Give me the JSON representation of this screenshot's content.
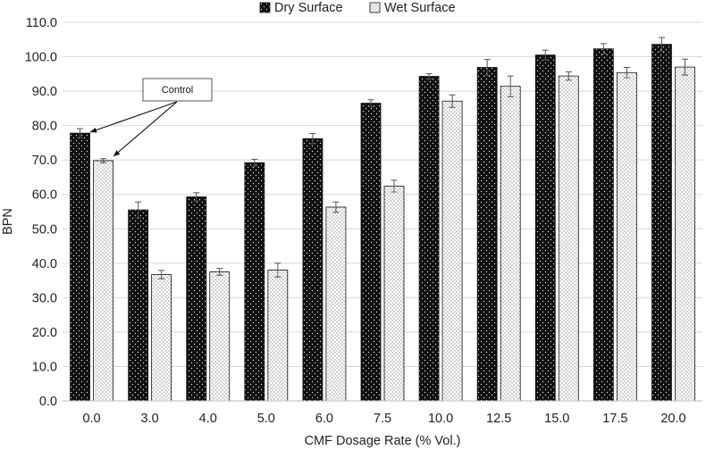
{
  "chart_data": {
    "type": "bar",
    "title": "",
    "xlabel": "CMF Dosage Rate (% Vol.)",
    "ylabel": "BPN",
    "ylim": [
      0,
      110
    ],
    "ytick_step": 10,
    "ytick_labels": [
      "0.0",
      "10.0",
      "20.0",
      "30.0",
      "40.0",
      "50.0",
      "60.0",
      "70.0",
      "80.0",
      "90.0",
      "100.0",
      "110.0"
    ],
    "grid": true,
    "legend_position": "top-center",
    "categories": [
      "0.0",
      "3.0",
      "4.0",
      "5.0",
      "6.0",
      "7.5",
      "10.0",
      "12.5",
      "15.0",
      "17.5",
      "20.0"
    ],
    "series": [
      {
        "name": "Dry Surface",
        "color": "#111111",
        "pattern": "white-dots-on-black",
        "values": [
          77.8,
          55.5,
          59.3,
          69.2,
          76.2,
          86.5,
          94.3,
          96.9,
          100.5,
          102.3,
          103.6
        ],
        "errors": [
          1.3,
          2.3,
          1.2,
          1.0,
          1.5,
          1.0,
          0.8,
          2.3,
          1.4,
          1.5,
          2.0
        ]
      },
      {
        "name": "Wet Surface",
        "color": "#ffffff",
        "pattern": "black-dots-on-white",
        "values": [
          69.8,
          36.7,
          37.5,
          38.0,
          56.3,
          62.4,
          87.1,
          91.4,
          94.4,
          95.4,
          97.0
        ],
        "errors": [
          0.6,
          1.2,
          1.0,
          2.0,
          1.5,
          1.7,
          1.8,
          3.0,
          1.2,
          1.5,
          2.3
        ]
      }
    ],
    "annotations": [
      {
        "text": "Control",
        "points_to": [
          "Dry Surface @ 0.0",
          "Wet Surface @ 0.0"
        ]
      }
    ]
  }
}
